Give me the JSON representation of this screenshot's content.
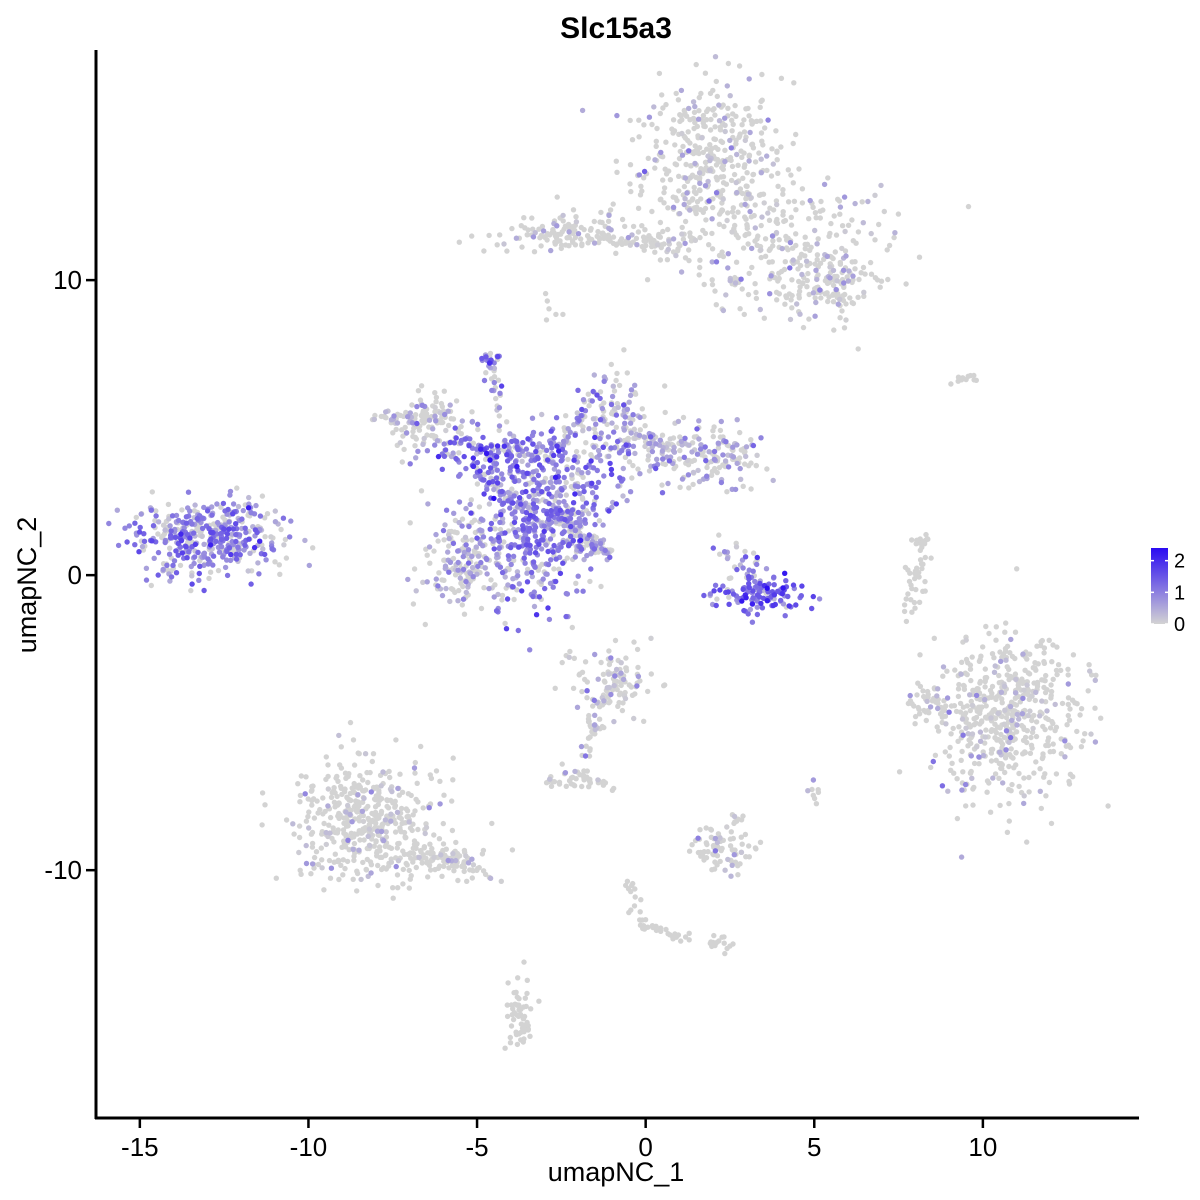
{
  "chart_data": {
    "type": "scatter",
    "title": "Slc15a3",
    "xlabel": "umapNC_1",
    "ylabel": "umapNC_2",
    "xlim": [
      -16.3,
      14.6
    ],
    "ylim": [
      -18.4,
      17.8
    ],
    "x_ticks": [
      -15,
      -10,
      -5,
      0,
      5,
      10
    ],
    "x_tick_labels": [
      "-15",
      "-10",
      "-5",
      "0",
      "5",
      "10"
    ],
    "y_ticks": [
      -10,
      0,
      10
    ],
    "y_tick_labels": [
      "-10",
      "0",
      "10"
    ],
    "color_scale": {
      "low_color": "#D3D3D3",
      "high_color": "#2A0BF2",
      "range": [
        0,
        2.4
      ],
      "ticks": [
        0,
        1,
        2
      ],
      "tick_labels": [
        "0",
        "1",
        "2"
      ]
    },
    "grid": false,
    "legend": "right",
    "clusters": [
      {
        "cx": 1.8,
        "cy": 14.0,
        "sx": 1.1,
        "sy": 1.4,
        "n": 420,
        "expr": 0.05
      },
      {
        "cx": 4.3,
        "cy": 11.0,
        "sx": 1.5,
        "sy": 1.2,
        "n": 260,
        "expr": 0.2
      },
      {
        "cx": 5.5,
        "cy": 9.8,
        "sx": 0.6,
        "sy": 0.5,
        "n": 90,
        "expr": 0.05
      },
      {
        "cx": -2.3,
        "cy": 11.6,
        "sx": 1.1,
        "sy": 0.3,
        "n": 120,
        "expr": 0.03
      },
      {
        "cx": 0.5,
        "cy": 11.3,
        "sx": 1.0,
        "sy": 0.25,
        "n": 50,
        "expr": 0.02
      },
      {
        "cx": -2.9,
        "cy": 9.0,
        "sx": 0.15,
        "sy": 0.4,
        "n": 6,
        "expr": 0.0
      },
      {
        "cx": -13.0,
        "cy": 1.2,
        "sx": 1.1,
        "sy": 0.65,
        "n": 420,
        "expr": 0.9
      },
      {
        "cx": -11.8,
        "cy": 2.2,
        "sx": 0.3,
        "sy": 0.4,
        "n": 20,
        "expr": 0.8
      },
      {
        "cx": -2.7,
        "cy": 3.0,
        "sx": 1.1,
        "sy": 1.0,
        "n": 320,
        "expr": 0.95
      },
      {
        "cx": -3.2,
        "cy": 1.0,
        "sx": 0.7,
        "sy": 1.2,
        "n": 220,
        "expr": 1.0
      },
      {
        "cx": -5.2,
        "cy": 0.6,
        "sx": 0.7,
        "sy": 0.8,
        "n": 220,
        "expr": 0.55
      },
      {
        "cx": -4.5,
        "cy": 4.1,
        "sx": 0.9,
        "sy": 0.35,
        "n": 150,
        "expr": 1.1
      },
      {
        "cx": -6.5,
        "cy": 5.2,
        "sx": 0.55,
        "sy": 0.55,
        "n": 110,
        "expr": 0.35
      },
      {
        "cx": -0.8,
        "cy": 5.3,
        "sx": 0.55,
        "sy": 0.8,
        "n": 120,
        "expr": 0.55
      },
      {
        "cx": 1.7,
        "cy": 4.0,
        "sx": 0.9,
        "sy": 0.5,
        "n": 170,
        "expr": 0.45
      },
      {
        "cx": -4.7,
        "cy": 7.2,
        "sx": 0.15,
        "sy": 0.2,
        "n": 15,
        "expr": 1.0
      },
      {
        "cx": 3.4,
        "cy": -0.6,
        "sx": 0.7,
        "sy": 0.3,
        "n": 120,
        "expr": 1.3
      },
      {
        "cx": 2.8,
        "cy": 0.5,
        "sx": 0.3,
        "sy": 0.4,
        "n": 30,
        "expr": 0.8
      },
      {
        "cx": 10.6,
        "cy": -4.8,
        "sx": 1.1,
        "sy": 1.4,
        "n": 560,
        "expr": 0.06
      },
      {
        "cx": 8.4,
        "cy": -4.4,
        "sx": 0.3,
        "sy": 0.3,
        "n": 30,
        "expr": 0.03
      },
      {
        "cx": -8.3,
        "cy": -8.3,
        "sx": 1.1,
        "sy": 1.0,
        "n": 460,
        "expr": 0.05
      },
      {
        "cx": -5.9,
        "cy": -9.7,
        "sx": 0.7,
        "sy": 0.3,
        "n": 80,
        "expr": 0.05
      },
      {
        "cx": -1.0,
        "cy": -3.6,
        "sx": 0.6,
        "sy": 0.6,
        "n": 110,
        "expr": 0.2
      },
      {
        "cx": -2.3,
        "cy": -6.9,
        "sx": 0.35,
        "sy": 0.2,
        "n": 30,
        "expr": 0.1
      },
      {
        "cx": 2.3,
        "cy": -9.3,
        "sx": 0.45,
        "sy": 0.4,
        "n": 70,
        "expr": 0.02
      },
      {
        "cx": -3.7,
        "cy": -14.8,
        "sx": 0.2,
        "sy": 0.6,
        "n": 40,
        "expr": 0.0
      },
      {
        "cx": 2.2,
        "cy": -12.5,
        "sx": 0.3,
        "sy": 0.15,
        "n": 15,
        "expr": 0.0
      },
      {
        "cx": 7.9,
        "cy": -0.5,
        "sx": 0.2,
        "sy": 0.6,
        "n": 25,
        "expr": 0.0
      },
      {
        "cx": 5.0,
        "cy": -7.3,
        "sx": 0.1,
        "sy": 0.2,
        "n": 8,
        "expr": 0.05
      },
      {
        "cx": 9.7,
        "cy": 6.7,
        "sx": 0.2,
        "sy": 0.1,
        "n": 5,
        "expr": 0.0
      }
    ],
    "segments": [
      {
        "x1": -4.4,
        "y1": 5.5,
        "x2": -4.5,
        "y2": 7.6,
        "n": 25,
        "expr": 0.7
      },
      {
        "x1": -2.5,
        "y1": 4.2,
        "x2": -1.4,
        "y2": 6.6,
        "n": 35,
        "expr": 0.7
      },
      {
        "x1": -3.7,
        "y1": 2.3,
        "x2": -5.0,
        "y2": 3.5,
        "n": 30,
        "expr": 0.9
      },
      {
        "x1": -2.5,
        "y1": 2.0,
        "x2": -1.3,
        "y2": 0.7,
        "n": 35,
        "expr": 0.5
      },
      {
        "x1": -1.3,
        "y1": 0.7,
        "x2": -1.0,
        "y2": 0.7,
        "n": 8,
        "expr": 0.5
      },
      {
        "x1": -1.0,
        "y1": 0.9,
        "x2": -1.6,
        "y2": 0.9,
        "n": 8,
        "expr": 0.5
      },
      {
        "x1": -2.8,
        "y1": 2.5,
        "x2": -1.8,
        "y2": 0.6,
        "n": 30,
        "expr": 0.7
      },
      {
        "x1": -2.6,
        "y1": 2.0,
        "x2": -1.0,
        "y2": 0.7,
        "n": 24,
        "expr": 0.6
      },
      {
        "x1": -8.1,
        "y1": 5.2,
        "x2": -5.9,
        "y2": 5.4,
        "n": 35,
        "expr": 0.2
      },
      {
        "x1": -0.3,
        "y1": 4.8,
        "x2": 0.9,
        "y2": 4.2,
        "n": 30,
        "expr": 0.5
      },
      {
        "x1": -1.0,
        "y1": -4.0,
        "x2": -1.7,
        "y2": -5.5,
        "n": 20,
        "expr": 0.2
      },
      {
        "x1": -1.4,
        "y1": -5.1,
        "x2": -1.8,
        "y2": -6.3,
        "n": 15,
        "expr": 0.2
      },
      {
        "x1": -0.5,
        "y1": -10.2,
        "x2": -0.1,
        "y2": -12.0,
        "n": 20,
        "expr": 0.0
      },
      {
        "x1": 0.1,
        "y1": -11.9,
        "x2": 1.4,
        "y2": -12.4,
        "n": 20,
        "expr": 0.0
      },
      {
        "x1": -6.5,
        "y1": -9.2,
        "x2": -4.7,
        "y2": -10.2,
        "n": 30,
        "expr": 0.04
      },
      {
        "x1": 7.8,
        "y1": 1.0,
        "x2": 8.4,
        "y2": 1.2,
        "n": 15,
        "expr": 0.0
      },
      {
        "x1": 8.4,
        "y1": 0.8,
        "x2": 7.8,
        "y2": -0.2,
        "n": 12,
        "expr": 0.0
      },
      {
        "x1": 0.4,
        "y1": 11.3,
        "x2": -1.2,
        "y2": 11.3,
        "n": 20,
        "expr": 0.02
      },
      {
        "x1": 2.4,
        "y1": 10.2,
        "x2": 2.8,
        "y2": 9.8,
        "n": 10,
        "expr": 0.02
      },
      {
        "x1": -2.0,
        "y1": -6.7,
        "x2": -1.0,
        "y2": -7.2,
        "n": 15,
        "expr": 0.05
      },
      {
        "x1": 1.5,
        "y1": -8.8,
        "x2": 2.8,
        "y2": -8.2,
        "n": 12,
        "expr": 0.02
      },
      {
        "x1": -4.0,
        "y1": -13.8,
        "x2": -3.5,
        "y2": -15.8,
        "n": 20,
        "expr": 0.0
      },
      {
        "x1": 9.0,
        "y1": 6.5,
        "x2": 10.0,
        "y2": 6.9,
        "n": 6,
        "expr": 0.0
      }
    ],
    "highlight_points": [
      {
        "x": -4.5,
        "y": 2.6,
        "value": 2.4
      }
    ]
  }
}
